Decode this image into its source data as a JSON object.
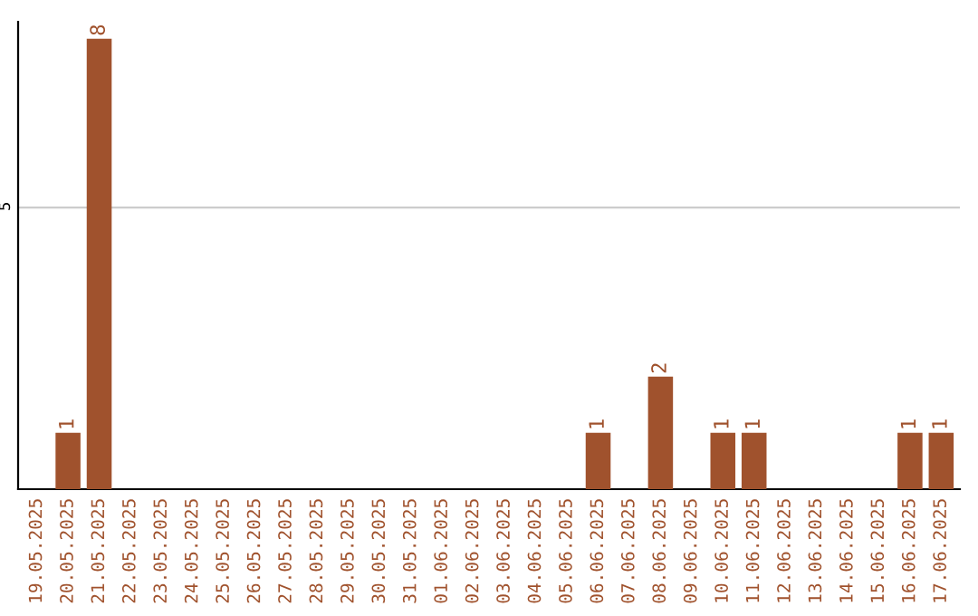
{
  "chart_data": {
    "type": "bar",
    "categories": [
      "19.05.2025",
      "20.05.2025",
      "21.05.2025",
      "22.05.2025",
      "23.05.2025",
      "24.05.2025",
      "25.05.2025",
      "26.05.2025",
      "27.05.2025",
      "28.05.2025",
      "29.05.2025",
      "30.05.2025",
      "31.05.2025",
      "01.06.2025",
      "02.06.2025",
      "03.06.2025",
      "04.06.2025",
      "05.06.2025",
      "06.06.2025",
      "07.06.2025",
      "08.06.2025",
      "09.06.2025",
      "10.06.2025",
      "11.06.2025",
      "12.06.2025",
      "13.06.2025",
      "14.06.2025",
      "15.06.2025",
      "16.06.2025",
      "17.06.2025"
    ],
    "values": [
      0,
      1,
      8,
      0,
      0,
      0,
      0,
      0,
      0,
      0,
      0,
      0,
      0,
      0,
      0,
      0,
      0,
      0,
      1,
      0,
      2,
      0,
      1,
      1,
      0,
      0,
      0,
      0,
      1,
      1
    ],
    "value_labels": [
      null,
      "1",
      "8",
      null,
      null,
      null,
      null,
      null,
      null,
      null,
      null,
      null,
      null,
      null,
      null,
      null,
      null,
      null,
      "1",
      null,
      "2",
      null,
      "1",
      "1",
      null,
      null,
      null,
      null,
      "1",
      "1"
    ],
    "color": "#a0522d",
    "ylim": [
      0,
      8.3
    ],
    "yticks": [
      5
    ],
    "grid": "y",
    "legend": false
  }
}
